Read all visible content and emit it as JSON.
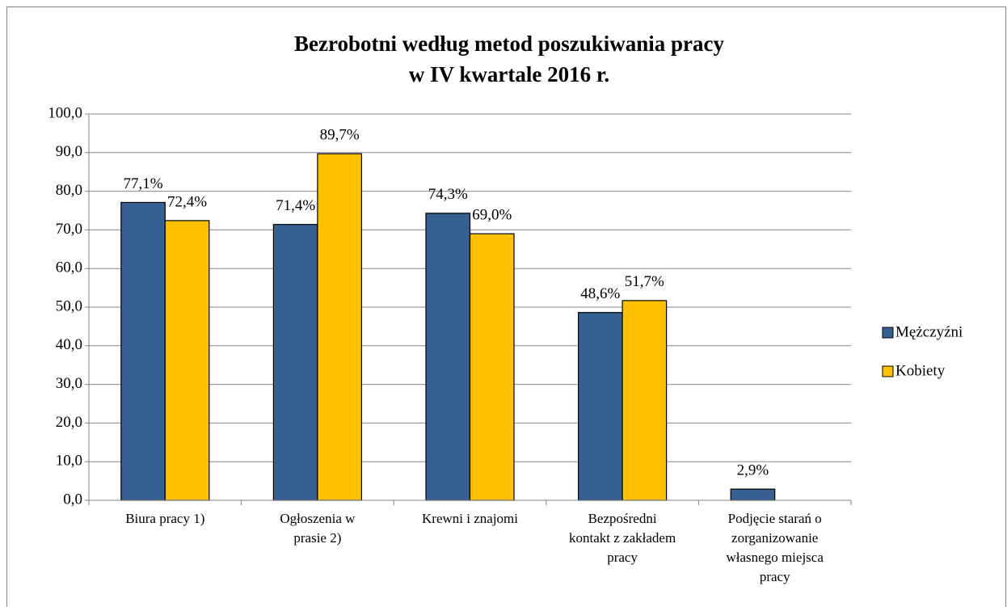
{
  "chart_data": {
    "type": "bar",
    "title": [
      "Bezrobotni według metod poszukiwania pracy",
      "w IV kwartale 2016 r."
    ],
    "categories": [
      "Biura pracy 1)",
      "Ogłoszenia w prasie 2)",
      "Krewni i znajomi",
      "Bezpośredni kontakt z zakładem pracy",
      "Podjęcie starań o zorganizowanie własnego miejsca pracy"
    ],
    "series": [
      {
        "name": "Mężczyźni",
        "color": "#376092",
        "values": [
          77.1,
          71.4,
          74.3,
          48.6,
          2.9
        ],
        "value_labels": [
          "77,1%",
          "71,4%",
          "74,3%",
          "48,6%",
          "2,9%"
        ]
      },
      {
        "name": "Kobiety",
        "color": "#ffc000",
        "values": [
          72.4,
          89.7,
          69.0,
          51.7,
          null
        ],
        "value_labels": [
          "72,4%",
          "89,7%",
          "69,0%",
          "51,7%",
          null
        ]
      }
    ],
    "ylim": [
      0,
      100
    ],
    "yticks": [
      {
        "value": 0,
        "label": "0,0"
      },
      {
        "value": 10,
        "label": "10,0"
      },
      {
        "value": 20,
        "label": "20,0"
      },
      {
        "value": 30,
        "label": "30,0"
      },
      {
        "value": 40,
        "label": "40,0"
      },
      {
        "value": 50,
        "label": "50,0"
      },
      {
        "value": 60,
        "label": "60,0"
      },
      {
        "value": 70,
        "label": "70,0"
      },
      {
        "value": 80,
        "label": "80,0"
      },
      {
        "value": 90,
        "label": "90,0"
      },
      {
        "value": 100,
        "label": "100,0"
      }
    ],
    "grid": true,
    "legend": "right"
  }
}
